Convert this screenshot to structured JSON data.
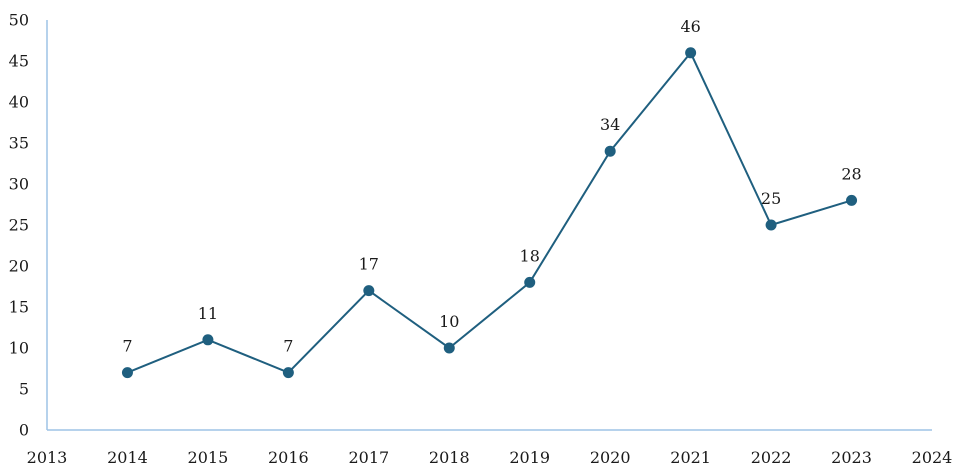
{
  "chart_data": {
    "type": "line",
    "title": "",
    "xlabel": "",
    "ylabel": "",
    "x_ticks": [
      "2013",
      "2014",
      "2015",
      "2016",
      "2017",
      "2018",
      "2019",
      "2020",
      "2021",
      "2022",
      "2023",
      "2024"
    ],
    "y_ticks": [
      "0",
      "5",
      "10",
      "15",
      "20",
      "25",
      "30",
      "35",
      "40",
      "45",
      "50"
    ],
    "xlim": [
      2013,
      2024
    ],
    "ylim": [
      0,
      50
    ],
    "grid": false,
    "legend": "none",
    "series": [
      {
        "x": [
          2014,
          2015,
          2016,
          2017,
          2018,
          2019,
          2020,
          2021,
          2022,
          2023
        ],
        "values": [
          7,
          11,
          7,
          17,
          10,
          18,
          34,
          46,
          25,
          28
        ],
        "labels": [
          "7",
          "11",
          "7",
          "17",
          "10",
          "18",
          "34",
          "46",
          "25",
          "28"
        ],
        "color": "#1f5f7f"
      }
    ],
    "axis_color": "#9dc3e6"
  }
}
